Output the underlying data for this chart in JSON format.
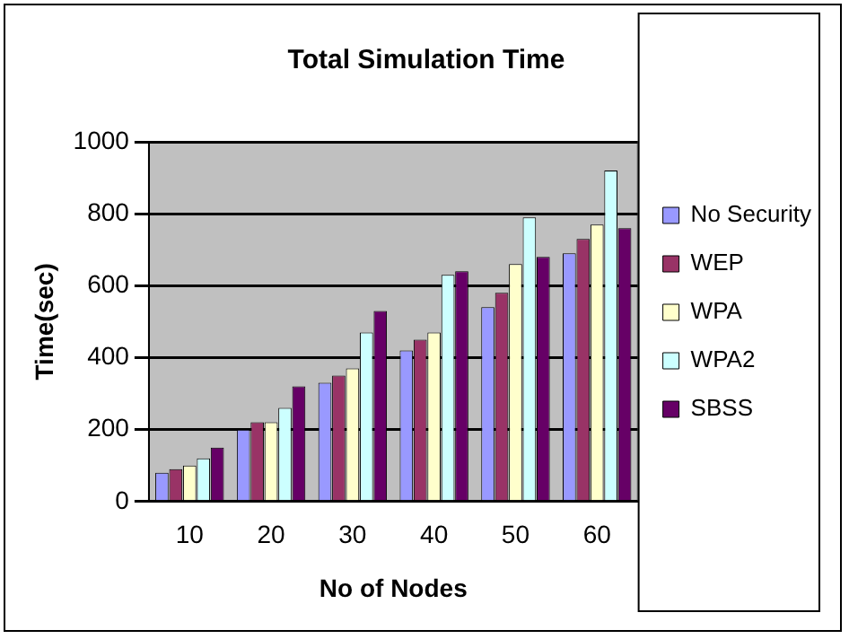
{
  "chart_data": {
    "type": "bar",
    "title": "Total Simulation Time",
    "xlabel": "No of Nodes",
    "ylabel": "Time(sec)",
    "categories": [
      "10",
      "20",
      "30",
      "40",
      "50",
      "60"
    ],
    "series": [
      {
        "name": "No Security",
        "color": "#9999ff",
        "values": [
          80,
          200,
          330,
          420,
          540,
          690
        ]
      },
      {
        "name": "WEP",
        "color": "#993366",
        "values": [
          90,
          220,
          350,
          450,
          580,
          730
        ]
      },
      {
        "name": "WPA",
        "color": "#ffffcc",
        "values": [
          100,
          220,
          370,
          470,
          660,
          770
        ]
      },
      {
        "name": "WPA2",
        "color": "#ccffff",
        "values": [
          120,
          260,
          470,
          630,
          790,
          920
        ]
      },
      {
        "name": "SBSS",
        "color": "#660066",
        "values": [
          150,
          320,
          530,
          640,
          680,
          760
        ]
      }
    ],
    "ylim": [
      0,
      1000
    ],
    "yticks": [
      0,
      200,
      400,
      600,
      800,
      1000
    ],
    "grid": "y",
    "legend": "right"
  }
}
